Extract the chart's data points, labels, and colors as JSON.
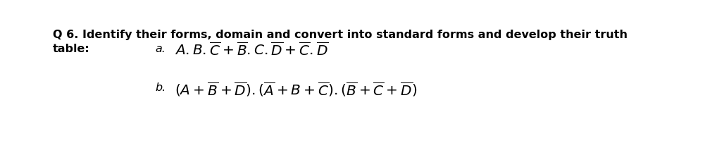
{
  "bg_color": "#ffffff",
  "text_color": "#000000",
  "fig_width": 10.28,
  "fig_height": 2.28,
  "dpi": 100,
  "q_line1": "Q 6. Identify their forms, domain and convert into standard forms and develop their truth",
  "q_line2": "table:",
  "label_a": "a.",
  "label_b": "b.",
  "expr_a": "$\\mathit{A.B.\\overline{C}+\\overline{B}.C.\\overline{D}+\\overline{C}.\\overline{D}}$",
  "expr_b": "$(\\mathit{A+\\overline{B}+\\overline{D}}).(\\mathit{\\overline{A}+B+\\overline{C}}).(\\mathit{\\overline{B}+\\overline{C}+\\overline{D}})$",
  "text_fs": 11.5,
  "expr_fs": 14.5
}
